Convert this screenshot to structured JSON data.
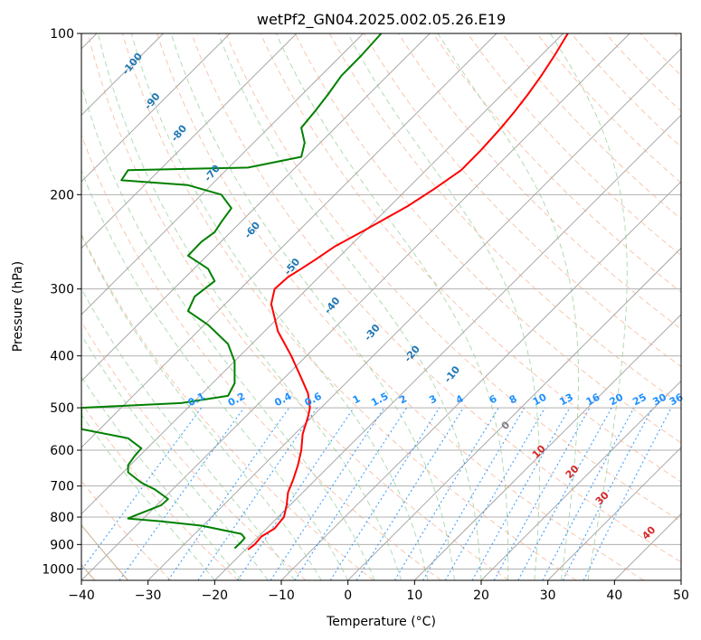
{
  "chart_data": {
    "type": "line",
    "title": "wetPf2_GN04.2025.002.05.26.E19",
    "xlabel": "Temperature (°C)",
    "ylabel": "Pressure (hPa)",
    "xlim": [
      -40,
      50
    ],
    "ylim": [
      1050,
      100
    ],
    "y_scale": "log",
    "x_ticks": [
      -40,
      -30,
      -20,
      -10,
      0,
      10,
      20,
      30,
      40,
      50
    ],
    "y_ticks": [
      100,
      200,
      300,
      400,
      500,
      600,
      700,
      800,
      900,
      1000
    ],
    "grid": true,
    "skew_factor": 35,
    "colors": {
      "temperature": "#ff0000",
      "dewpoint": "#008000",
      "isotherm": "#a0a0a0",
      "dry_adiabat": "#f4a582",
      "moist_adiabat": "#8fc98f",
      "mixing_ratio": "#1e90ff",
      "saturation_label": "#1f77b4",
      "theta_e_label": "#d62728",
      "wet_bulb_line": "#c8a882"
    },
    "series": [
      {
        "name": "Temperature",
        "points": [
          [
            -15,
            920
          ],
          [
            -14,
            900
          ],
          [
            -13,
            870
          ],
          [
            -11,
            840
          ],
          [
            -9.6,
            800
          ],
          [
            -9.2,
            760
          ],
          [
            -9,
            720
          ],
          [
            -8.2,
            680
          ],
          [
            -7.5,
            640
          ],
          [
            -7,
            600
          ],
          [
            -6.8,
            560
          ],
          [
            -6,
            520
          ],
          [
            -5.7,
            500
          ],
          [
            -6,
            470
          ],
          [
            -7,
            440
          ],
          [
            -8.5,
            400
          ],
          [
            -10.5,
            360
          ],
          [
            -11.5,
            320
          ],
          [
            -11,
            300
          ],
          [
            -9,
            285
          ],
          [
            -7,
            275
          ],
          [
            -5,
            265
          ],
          [
            -2,
            250
          ],
          [
            2,
            235
          ],
          [
            9,
            210
          ],
          [
            13,
            195
          ],
          [
            17,
            180
          ],
          [
            20,
            165
          ],
          [
            23,
            150
          ],
          [
            25,
            140
          ],
          [
            27,
            130
          ],
          [
            29,
            120
          ],
          [
            31,
            110
          ],
          [
            33,
            100
          ]
        ]
      },
      {
        "name": "Dewpoint",
        "points": [
          [
            -17,
            915
          ],
          [
            -16,
            890
          ],
          [
            -15.5,
            875
          ],
          [
            -16,
            860
          ],
          [
            -22,
            830
          ],
          [
            -28,
            815
          ],
          [
            -33,
            805
          ],
          [
            -32,
            795
          ],
          [
            -28,
            760
          ],
          [
            -27,
            740
          ],
          [
            -29,
            710
          ],
          [
            -31,
            690
          ],
          [
            -33,
            660
          ],
          [
            -33,
            640
          ],
          [
            -32,
            615
          ],
          [
            -31,
            595
          ],
          [
            -33,
            570
          ],
          [
            -40,
            548
          ],
          [
            -40,
            500
          ],
          [
            -25,
            490
          ],
          [
            -18,
            475
          ],
          [
            -17,
            450
          ],
          [
            -17,
            410
          ],
          [
            -18,
            380
          ],
          [
            -21,
            350
          ],
          [
            -24,
            330
          ],
          [
            -23,
            310
          ],
          [
            -20,
            290
          ],
          [
            -21,
            275
          ],
          [
            -24,
            260
          ],
          [
            -22,
            245
          ],
          [
            -20,
            235
          ],
          [
            -19,
            225
          ],
          [
            -17.5,
            212
          ],
          [
            -19,
            200
          ],
          [
            -24,
            192
          ],
          [
            -34,
            188
          ],
          [
            -33,
            180
          ],
          [
            -15,
            178
          ],
          [
            -7,
            170
          ],
          [
            -6.5,
            160
          ],
          [
            -7,
            150
          ],
          [
            -5,
            140
          ],
          [
            -3,
            130
          ],
          [
            -1,
            120
          ],
          [
            2,
            110
          ],
          [
            5,
            100
          ]
        ]
      }
    ],
    "annotations": {
      "saturation_lines": [
        "-100",
        "-90",
        "-80",
        "-70",
        "-60",
        "-50",
        "-40",
        "-30",
        "-20",
        "-10"
      ],
      "mixing_ratio_labels": [
        "0.1",
        "0.2",
        "0.4",
        "0.6",
        "1",
        "1.5",
        "2",
        "3",
        "4",
        "6",
        "8",
        "10",
        "13",
        "16",
        "20",
        "25",
        "30",
        "36"
      ],
      "theta_e_labels": [
        "0",
        "10",
        "20",
        "30",
        "40"
      ]
    }
  }
}
